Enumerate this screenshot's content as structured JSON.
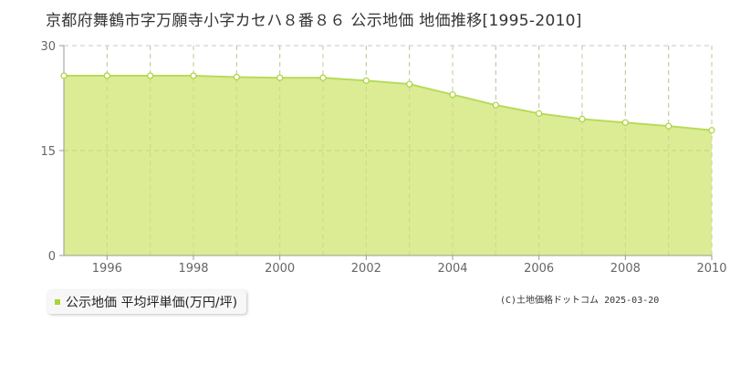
{
  "header": {
    "title": "京都府舞鶴市字万願寺小字カセハ８番８６ 公示地価 地価推移[1995-2010]"
  },
  "legend": {
    "label": "公示地価 平均坪単価(万円/坪)"
  },
  "footer": {
    "copyright": "(C)土地価格ドットコム 2025-03-20"
  },
  "colors": {
    "area_fill": "#dcec95",
    "line": "#b9da5a",
    "marker": "#a8d43a"
  },
  "chart_data": {
    "type": "area",
    "title": "京都府舞鶴市字万願寺小字カセハ８番８６ 公示地価 地価推移[1995-2010]",
    "xlabel": "",
    "ylabel": "",
    "x": [
      1995,
      1996,
      1997,
      1998,
      1999,
      2000,
      2001,
      2002,
      2003,
      2004,
      2005,
      2006,
      2007,
      2008,
      2009,
      2010
    ],
    "series": [
      {
        "name": "公示地価 平均坪単価(万円/坪)",
        "values": [
          25.7,
          25.7,
          25.7,
          25.7,
          25.5,
          25.4,
          25.4,
          25.0,
          24.5,
          23.0,
          21.5,
          20.3,
          19.5,
          19.0,
          18.5,
          17.9
        ]
      }
    ],
    "xlim": [
      1995,
      2010
    ],
    "ylim": [
      0,
      30
    ],
    "xticks": [
      "1996",
      "1998",
      "2000",
      "2002",
      "2004",
      "2006",
      "2008",
      "2010"
    ],
    "yticks": [
      "0",
      "15",
      "30"
    ],
    "grid": true,
    "legend_position": "bottom-left"
  }
}
